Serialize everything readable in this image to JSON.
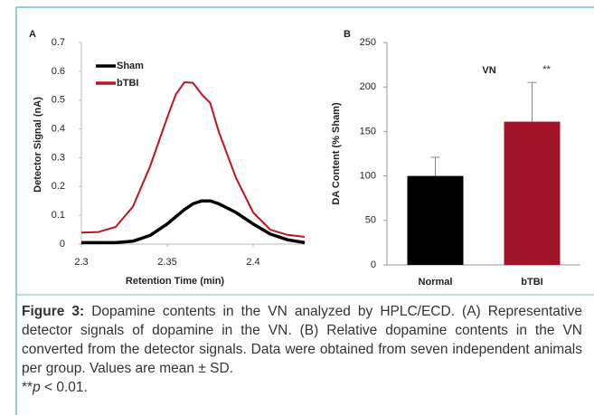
{
  "chart_data": [
    {
      "type": "line",
      "panel": "A",
      "ylabel": "Detector Signal (nA)",
      "xlabel": "Retention Time (min)",
      "x": [
        2.3,
        2.31,
        2.32,
        2.33,
        2.34,
        2.35,
        2.355,
        2.36,
        2.365,
        2.37,
        2.375,
        2.38,
        2.39,
        2.4,
        2.41,
        2.42,
        2.43
      ],
      "series": [
        {
          "name": "Sham",
          "color": "#000000",
          "values": [
            0.005,
            0.005,
            0.005,
            0.01,
            0.03,
            0.07,
            0.095,
            0.12,
            0.14,
            0.15,
            0.15,
            0.14,
            0.11,
            0.07,
            0.035,
            0.015,
            0.005
          ]
        },
        {
          "name": "bTBI",
          "color": "#c0121e",
          "values": [
            0.04,
            0.042,
            0.06,
            0.13,
            0.27,
            0.44,
            0.52,
            0.562,
            0.56,
            0.52,
            0.49,
            0.39,
            0.23,
            0.11,
            0.05,
            0.032,
            0.025
          ]
        }
      ],
      "xlim": [
        2.3,
        2.43
      ],
      "xticks": [
        2.3,
        2.35,
        2.4
      ],
      "ylim": [
        0,
        0.7
      ],
      "yticks": [
        0,
        0.1,
        0.2,
        0.3,
        0.4,
        0.5,
        0.6,
        0.7
      ],
      "legend": "upper left",
      "grid": false
    },
    {
      "type": "bar",
      "panel": "B",
      "title": "VN",
      "ylabel": "DA Content (% Sham)",
      "categories": [
        "Normal",
        "bTBI"
      ],
      "values": [
        100,
        161
      ],
      "errors": [
        21,
        44
      ],
      "colors": [
        "#000000",
        "#a31428"
      ],
      "annotation": "**",
      "ylim": [
        0,
        250
      ],
      "yticks": [
        0,
        50,
        100,
        150,
        200,
        250
      ],
      "grid": false
    }
  ],
  "caption": {
    "label": "Figure 3:",
    "text": "Dopamine contents in the VN analyzed by HPLC/ECD. (A) Representative detector signals of dopamine in the VN. (B) Relative dopamine contents in the VN converted from the detector signals. Data were obtained from seven independent animals per group. Values are mean ± SD.",
    "sig_prefix": "**",
    "sig_p": "p",
    "sig_rest": " < 0.01."
  }
}
